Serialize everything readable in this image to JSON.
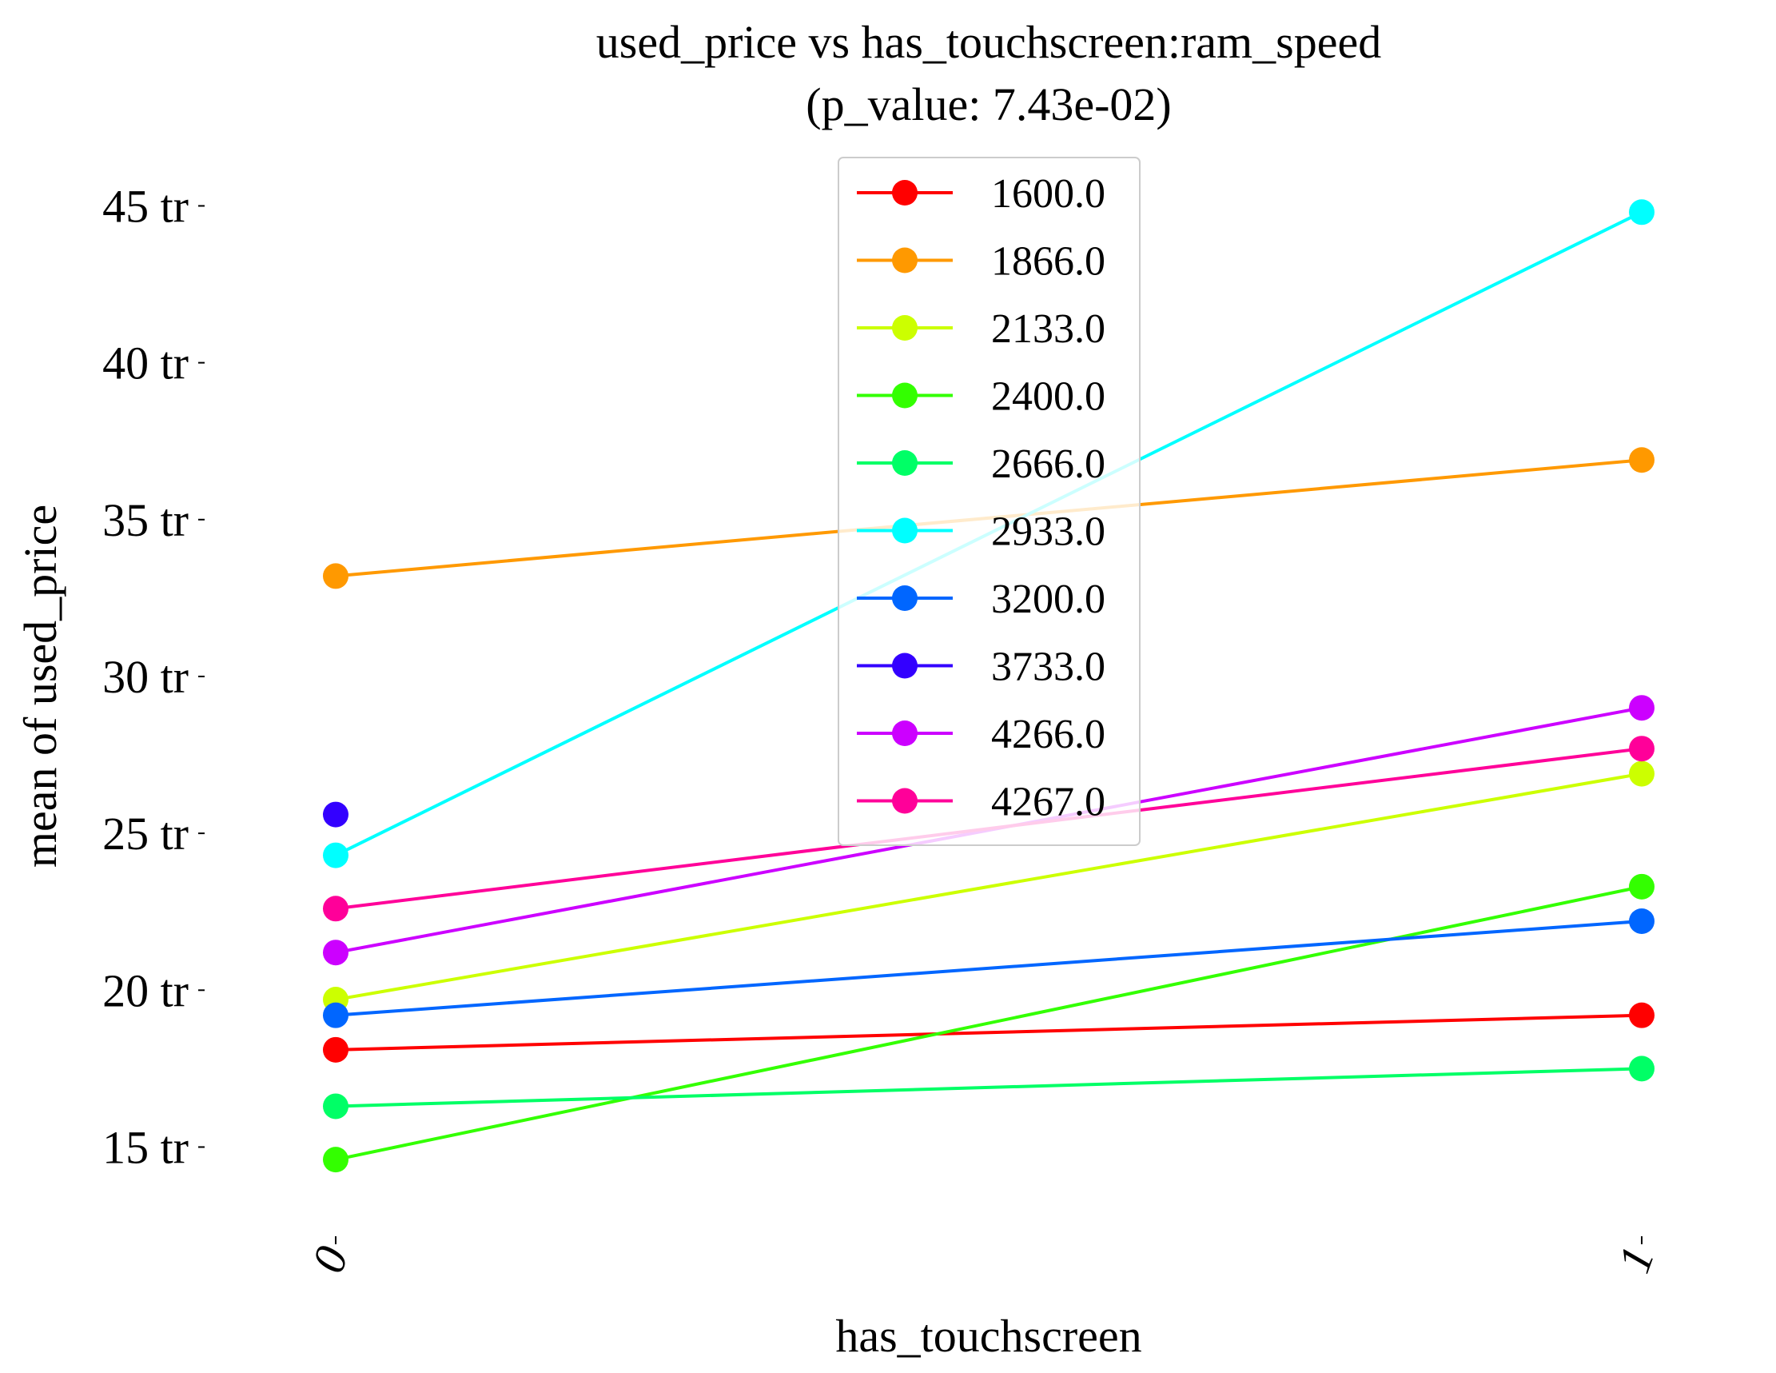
{
  "chart_data": {
    "type": "line",
    "title_line1": "used_price vs has_touchscreen:ram_speed",
    "title_line2": "(p_value: 7.43e-02)",
    "xlabel": "has_touchscreen",
    "ylabel": "mean of used_price",
    "categories": [
      "0",
      "1"
    ],
    "ylim": [
      11.8,
      45.7
    ],
    "yticks": [
      15,
      20,
      25,
      30,
      35,
      40,
      45
    ],
    "ytick_labels": [
      "15 tr",
      "20 tr",
      "25 tr",
      "30 tr",
      "35 tr",
      "40 tr",
      "45 tr"
    ],
    "grid": false,
    "legend_position": "top-center",
    "series": [
      {
        "name": "1600.0",
        "color": "#ff0000",
        "values": [
          18.1,
          19.2
        ]
      },
      {
        "name": "1866.0",
        "color": "#ff9900",
        "values": [
          33.2,
          36.9
        ]
      },
      {
        "name": "2133.0",
        "color": "#ccff00",
        "values": [
          19.7,
          26.9
        ]
      },
      {
        "name": "2400.0",
        "color": "#33ff00",
        "values": [
          14.6,
          23.3
        ]
      },
      {
        "name": "2666.0",
        "color": "#00ff66",
        "values": [
          16.3,
          17.5
        ]
      },
      {
        "name": "2933.0",
        "color": "#00ffff",
        "values": [
          24.3,
          44.8
        ]
      },
      {
        "name": "3200.0",
        "color": "#0066ff",
        "values": [
          19.2,
          22.2
        ]
      },
      {
        "name": "3733.0",
        "color": "#3300ff",
        "values": [
          25.6,
          null
        ]
      },
      {
        "name": "4266.0",
        "color": "#cc00ff",
        "values": [
          21.2,
          29.0
        ]
      },
      {
        "name": "4267.0",
        "color": "#ff0099",
        "values": [
          22.6,
          27.7
        ]
      }
    ]
  }
}
